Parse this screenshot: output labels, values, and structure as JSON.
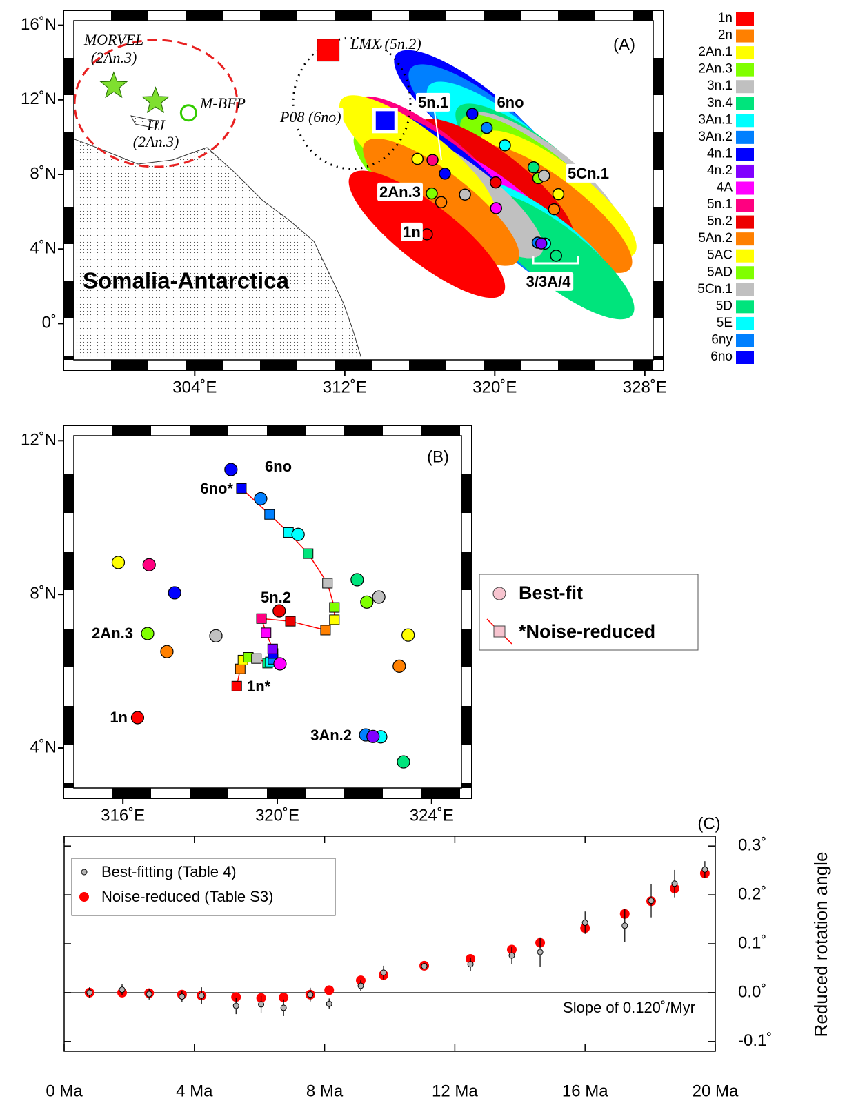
{
  "chart_data": [
    {
      "type": "map",
      "label": "(A)",
      "plate_pair": "Somalia-Antarctica",
      "xlim": [
        297,
        329
      ],
      "ylim": [
        -2.5,
        16.8
      ],
      "xticks": [
        {
          "value": 304,
          "label": "304˚E"
        },
        {
          "value": 312,
          "label": "312˚E"
        },
        {
          "value": 320,
          "label": "320˚E"
        },
        {
          "value": 328,
          "label": "328˚E"
        }
      ],
      "yticks": [
        {
          "value": 0,
          "label": "0˚"
        },
        {
          "value": 4,
          "label": "4˚N"
        },
        {
          "value": 8,
          "label": "8˚N"
        },
        {
          "value": 12,
          "label": "12˚N"
        },
        {
          "value": 16,
          "label": "16˚N"
        }
      ],
      "series": [
        {
          "name": "1n",
          "color": "#ff0000"
        },
        {
          "name": "2n",
          "color": "#ff8000"
        },
        {
          "name": "2An.1",
          "color": "#ffff00"
        },
        {
          "name": "2An.3",
          "color": "#80ff00"
        },
        {
          "name": "3n.1",
          "color": "#c0c0c0"
        },
        {
          "name": "3n.4",
          "color": "#00e47c"
        },
        {
          "name": "3An.1",
          "color": "#00ffff"
        },
        {
          "name": "3An.2",
          "color": "#0080ff"
        },
        {
          "name": "4n.1",
          "color": "#0000ff"
        },
        {
          "name": "4n.2",
          "color": "#8000ff"
        },
        {
          "name": "4A",
          "color": "#ff00ff"
        },
        {
          "name": "5n.1",
          "color": "#ff0080"
        },
        {
          "name": "5n.2",
          "color": "#ee0000"
        },
        {
          "name": "5An.2",
          "color": "#ff8000"
        },
        {
          "name": "5AC",
          "color": "#ffff00"
        },
        {
          "name": "5AD",
          "color": "#80ff00"
        },
        {
          "name": "5Cn.1",
          "color": "#c0c0c0"
        },
        {
          "name": "5D",
          "color": "#00e47c"
        },
        {
          "name": "5E",
          "color": "#00ffff"
        },
        {
          "name": "6ny",
          "color": "#0080ff"
        },
        {
          "name": "6no",
          "color": "#0000ff"
        }
      ],
      "reference_poles": [
        {
          "name": "MORVEL",
          "chron": "(2An.3)",
          "marker": "star",
          "color": "#7fdf2f",
          "x": 299.68,
          "y": 12.74
        },
        {
          "name": "HJ",
          "chron": "(2An.3)",
          "marker": "star",
          "color": "#7fdf2f",
          "x": 301.91,
          "y": 11.93
        },
        {
          "name": "M-BFP",
          "marker": "circle",
          "color": "#33cc00",
          "x": 303.67,
          "y": 11.3
        },
        {
          "name": "LMX",
          "chron": "(5n.2)",
          "marker": "square",
          "color": "#ff0000",
          "x": 311.11,
          "y": 14.67
        },
        {
          "name": "P08",
          "chron": "(6no)",
          "marker": "square",
          "color": "#0000ff",
          "x": 314.15,
          "y": 10.89
        }
      ],
      "annotations": [
        "5n.1",
        "6no",
        "5Cn.1",
        "2An.3",
        "1n",
        "3/3A/4"
      ]
    },
    {
      "type": "scatter",
      "label": "(B)",
      "xlim": [
        314.46,
        325.04
      ],
      "ylim": [
        2.69,
        12.4
      ],
      "xticks": [
        {
          "value": 316,
          "label": "316˚E"
        },
        {
          "value": 320,
          "label": "320˚E"
        },
        {
          "value": 324,
          "label": "324˚E"
        }
      ],
      "yticks": [
        {
          "value": 4,
          "label": "4˚N"
        },
        {
          "value": 8,
          "label": "8˚N"
        },
        {
          "value": 12,
          "label": "12˚N"
        }
      ],
      "legend_marker_color": "#f7c4cf",
      "series": [
        {
          "name": "Best-fit",
          "marker": "circle",
          "x": [
            316.38,
            317.14,
            315.88,
            316.64,
            318.41,
            323.27,
            322.68,
            322.29,
            317.34,
            322.48,
            320.07,
            316.68,
            320.05,
            323.16,
            323.39,
            322.32,
            322.63,
            322.07,
            320.54,
            319.57,
            318.8
          ],
          "y": [
            4.79,
            6.51,
            8.83,
            6.98,
            6.92,
            3.64,
            4.29,
            4.34,
            8.04,
            4.3,
            6.19,
            8.77,
            7.57,
            6.13,
            6.94,
            7.8,
            7.93,
            8.38,
            9.56,
            10.49,
            11.25
          ]
        },
        {
          "name": "*Noise-reduced",
          "marker": "square",
          "line_color": "#ff0000",
          "x": [
            318.95,
            319.04,
            319.11,
            319.25,
            319.46,
            319.75,
            319.82,
            319.89,
            319.89,
            319.88,
            319.71,
            319.59,
            320.34,
            321.25,
            321.48,
            321.48,
            321.3,
            320.8,
            320.29,
            319.8,
            319.07
          ],
          "y": [
            5.61,
            6.06,
            6.29,
            6.36,
            6.33,
            6.21,
            6.24,
            6.31,
            6.46,
            6.58,
            7.0,
            7.37,
            7.3,
            7.07,
            7.34,
            7.66,
            8.29,
            9.06,
            9.61,
            10.08,
            10.76
          ]
        }
      ],
      "annotations": [
        "6no",
        "6no*",
        "5n.2",
        "2An.3",
        "1n*",
        "1n",
        "3An.2"
      ]
    },
    {
      "type": "scatter",
      "label": "(C)",
      "y_label": "Reduced rotation angle",
      "annotation": "Slope of 0.120˚/Myr",
      "xlim": [
        0,
        20
      ],
      "ylim": [
        -0.12,
        0.32
      ],
      "xticks": [
        {
          "value": 0,
          "label": "0 Ma"
        },
        {
          "value": 4,
          "label": "4 Ma"
        },
        {
          "value": 8,
          "label": "8 Ma"
        },
        {
          "value": 12,
          "label": "12 Ma"
        },
        {
          "value": 16,
          "label": "16 Ma"
        },
        {
          "value": 20,
          "label": "20 Ma"
        }
      ],
      "yticks": [
        {
          "value": -0.1,
          "label": "-0.1˚"
        },
        {
          "value": 0,
          "label": "0.0˚"
        },
        {
          "value": 0.1,
          "label": "0.1˚"
        },
        {
          "value": 0.2,
          "label": "0.2˚"
        },
        {
          "value": 0.3,
          "label": "0.3˚"
        }
      ],
      "x": [
        0.78,
        1.78,
        2.61,
        3.62,
        4.22,
        5.28,
        6.05,
        6.74,
        7.56,
        8.14,
        9.11,
        9.81,
        11.06,
        12.48,
        13.75,
        14.62,
        16.0,
        17.22,
        18.03,
        18.75,
        19.68
      ],
      "series": [
        {
          "name": "Best-fitting (Table 4)",
          "color": "#b4b4b4",
          "values": [
            0.0,
            0.006,
            -0.003,
            -0.008,
            -0.006,
            -0.027,
            -0.024,
            -0.031,
            -0.004,
            -0.023,
            0.014,
            0.041,
            0.054,
            0.058,
            0.076,
            0.083,
            0.143,
            0.137,
            0.188,
            0.223,
            0.252
          ],
          "errors": [
            0.011,
            0.011,
            0.011,
            0.011,
            0.017,
            0.017,
            0.017,
            0.017,
            0.014,
            0.011,
            0.011,
            0.014,
            0.006,
            0.014,
            0.017,
            0.03,
            0.023,
            0.034,
            0.034,
            0.028,
            0.017
          ]
        },
        {
          "name": "Noise-reduced (Table S3)",
          "color": "#ff0000",
          "values": [
            0.0,
            0.0,
            -0.001,
            -0.004,
            -0.006,
            -0.009,
            -0.011,
            -0.01,
            -0.004,
            0.005,
            0.025,
            0.036,
            0.055,
            0.069,
            0.088,
            0.102,
            0.132,
            0.161,
            0.187,
            0.213,
            0.244
          ]
        }
      ]
    }
  ]
}
